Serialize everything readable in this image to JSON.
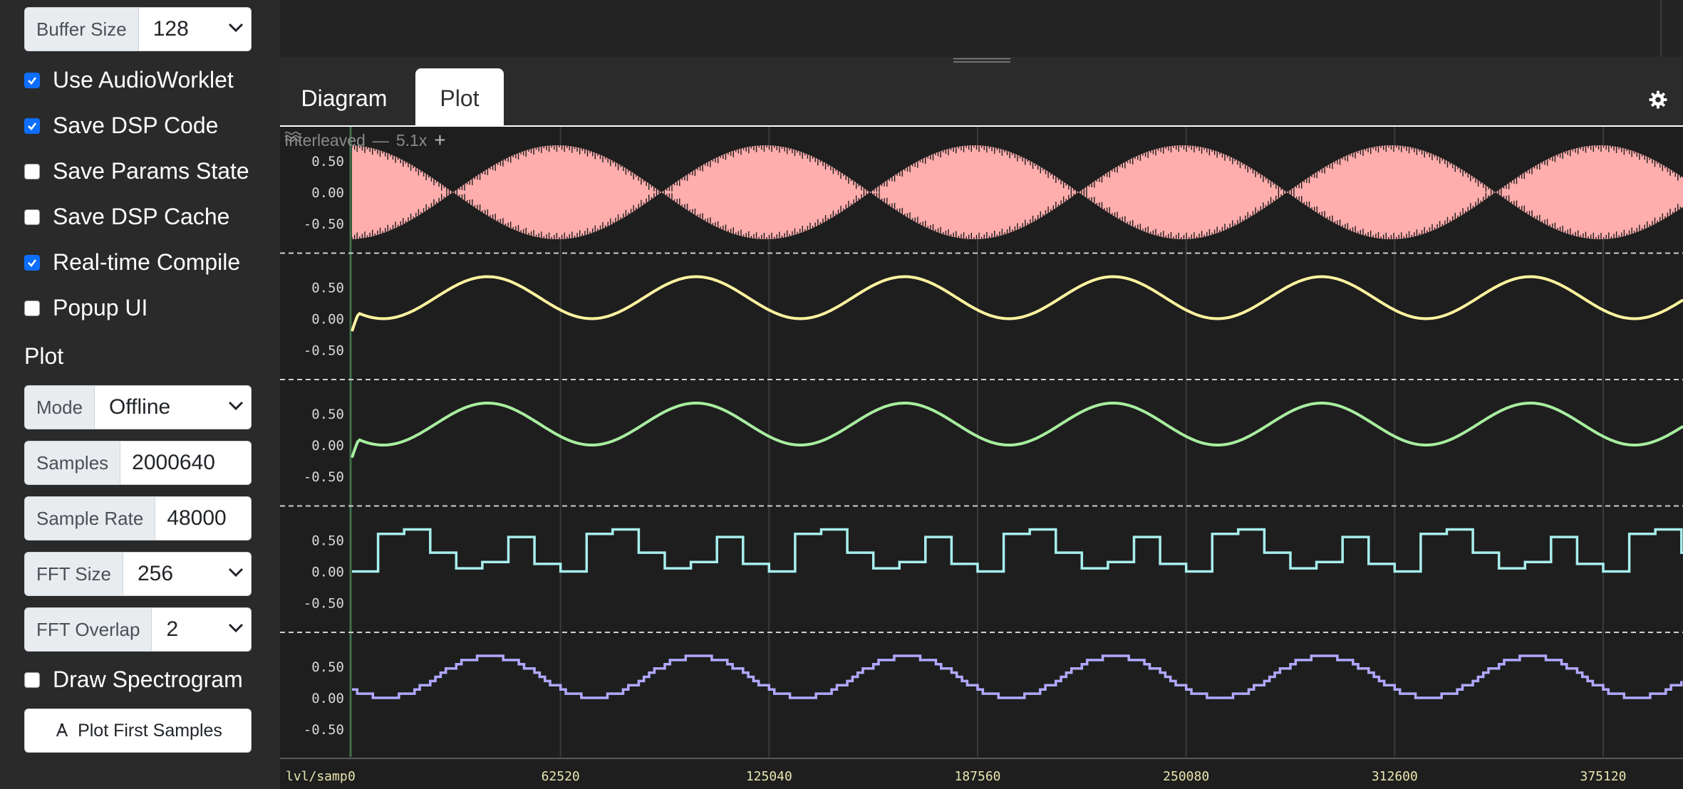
{
  "sidebar": {
    "buffer_size": {
      "label": "Buffer Size",
      "value": "128"
    },
    "checkboxes": [
      {
        "label": "Use AudioWorklet",
        "checked": true
      },
      {
        "label": "Save DSP Code",
        "checked": true
      },
      {
        "label": "Save Params State",
        "checked": false
      },
      {
        "label": "Save DSP Cache",
        "checked": false
      },
      {
        "label": "Real-time Compile",
        "checked": true
      },
      {
        "label": "Popup UI",
        "checked": false
      }
    ],
    "plot_section": {
      "title": "Plot",
      "mode": {
        "label": "Mode",
        "value": "Offline"
      },
      "samples": {
        "label": "Samples",
        "value": "2000640"
      },
      "sample_rate": {
        "label": "Sample Rate",
        "value": "48000"
      },
      "fft_size": {
        "label": "FFT Size",
        "value": "256"
      },
      "fft_overlap": {
        "label": "FFT Overlap",
        "value": "2"
      },
      "draw_spectrogram": {
        "label": "Draw Spectrogram",
        "checked": false
      },
      "plot_button": {
        "label": "Plot First Samples",
        "icon": "pen-chart-icon"
      }
    }
  },
  "tabs": [
    {
      "label": "Diagram",
      "active": false
    },
    {
      "label": "Plot",
      "active": true
    }
  ],
  "toolbar": {
    "mode_label": "Interleaved",
    "zoom": "5.1x",
    "plus": "+",
    "icon": "waves-icon"
  },
  "colors": {
    "accent": "#0d6efd",
    "channel_1": "#ffadad",
    "channel_2": "#fff3a0",
    "channel_3": "#a8eea0",
    "channel_4": "#a8eeee",
    "channel_5": "#b0a8ff"
  },
  "chart_data": {
    "type": "line",
    "x_axis_label": "lvl/samp",
    "x_ticks": [
      "0",
      "62520",
      "125040",
      "187560",
      "250080",
      "312600",
      "375120"
    ],
    "y_ticks": [
      "0.50",
      "0.00",
      "-0.50"
    ],
    "x_range": [
      0,
      390000
    ],
    "y_range": [
      -0.75,
      0.75
    ],
    "series": [
      {
        "color": "#ffadad",
        "form": "amplitude-modulated oscillation (filled envelope)",
        "envelope_period": 62520,
        "peak": 0.75
      },
      {
        "color": "#fff3a0",
        "form": "sine",
        "period": 62520,
        "min": 0.0,
        "max": 0.67
      },
      {
        "color": "#a8eea0",
        "form": "sine",
        "period": 62520,
        "min": 0.0,
        "max": 0.67
      },
      {
        "color": "#a8eeee",
        "form": "sample-and-hold steps",
        "levels": [
          0.0,
          0.6,
          0.67,
          0.3,
          0.05,
          0.15,
          0.55,
          0.12
        ]
      },
      {
        "color": "#b0a8ff",
        "form": "quantized staircase sine",
        "period": 62520,
        "min": 0.0,
        "max": 0.67
      }
    ]
  }
}
